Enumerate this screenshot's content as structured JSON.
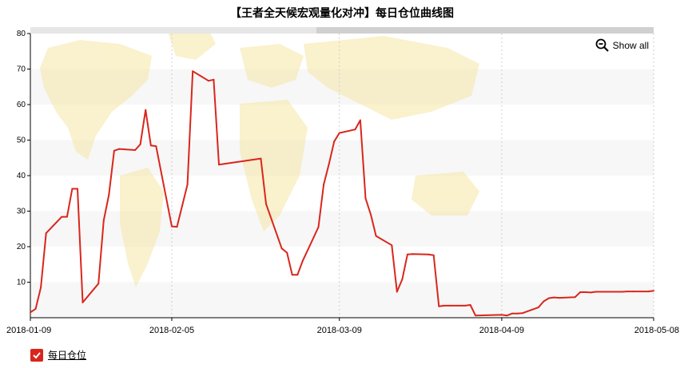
{
  "chart_data": {
    "type": "line",
    "title": "【王者全天候宏观量化对冲】每日仓位曲线图",
    "ylim": [
      0,
      80
    ],
    "yticks": [
      10,
      20,
      30,
      40,
      50,
      60,
      70,
      80
    ],
    "xlim": [
      "2018-01-09",
      "2018-05-08"
    ],
    "xticks": [
      "2018-01-09",
      "2018-02-05",
      "2018-03-09",
      "2018-04-09",
      "2018-05-08"
    ],
    "grid": "horizontal bands + vertical dotted lines",
    "legend_position": "bottom-left",
    "series": [
      {
        "name": "每日仓位",
        "color": "#d9261c",
        "points": [
          [
            "2018-01-09",
            1.5
          ],
          [
            "2018-01-10",
            2.5
          ],
          [
            "2018-01-11",
            8.5
          ],
          [
            "2018-01-12",
            23.8
          ],
          [
            "2018-01-15",
            28.4
          ],
          [
            "2018-01-16",
            28.4
          ],
          [
            "2018-01-17",
            36.3
          ],
          [
            "2018-01-18",
            36.3
          ],
          [
            "2018-01-19",
            4.3
          ],
          [
            "2018-01-22",
            9.6
          ],
          [
            "2018-01-23",
            27.4
          ],
          [
            "2018-01-24",
            34.6
          ],
          [
            "2018-01-25",
            47.0
          ],
          [
            "2018-01-26",
            47.5
          ],
          [
            "2018-01-29",
            47.2
          ],
          [
            "2018-01-30",
            48.8
          ],
          [
            "2018-01-31",
            58.5
          ],
          [
            "2018-02-01",
            48.5
          ],
          [
            "2018-02-02",
            48.3
          ],
          [
            "2018-02-05",
            25.7
          ],
          [
            "2018-02-06",
            25.6
          ],
          [
            "2018-02-07",
            31.6
          ],
          [
            "2018-02-08",
            37.5
          ],
          [
            "2018-02-09",
            69.4
          ],
          [
            "2018-02-12",
            66.7
          ],
          [
            "2018-02-13",
            67.0
          ],
          [
            "2018-02-14",
            43.1
          ],
          [
            "2018-02-22",
            44.8
          ],
          [
            "2018-02-23",
            32.0
          ],
          [
            "2018-02-26",
            19.5
          ],
          [
            "2018-02-27",
            18.3
          ],
          [
            "2018-02-28",
            12.1
          ],
          [
            "2018-03-01",
            12.1
          ],
          [
            "2018-03-02",
            16.0
          ],
          [
            "2018-03-05",
            25.5
          ],
          [
            "2018-03-06",
            37.5
          ],
          [
            "2018-03-07",
            43.2
          ],
          [
            "2018-03-08",
            49.6
          ],
          [
            "2018-03-09",
            52.0
          ],
          [
            "2018-03-12",
            53.0
          ],
          [
            "2018-03-13",
            55.6
          ],
          [
            "2018-03-14",
            33.6
          ],
          [
            "2018-03-15",
            29.0
          ],
          [
            "2018-03-16",
            23.0
          ],
          [
            "2018-03-19",
            20.4
          ],
          [
            "2018-03-20",
            7.3
          ],
          [
            "2018-03-21",
            10.8
          ],
          [
            "2018-03-22",
            17.8
          ],
          [
            "2018-03-23",
            17.9
          ],
          [
            "2018-03-26",
            17.8
          ],
          [
            "2018-03-27",
            17.6
          ],
          [
            "2018-03-28",
            3.2
          ],
          [
            "2018-03-29",
            3.4
          ],
          [
            "2018-03-30",
            3.4
          ],
          [
            "2018-04-02",
            3.4
          ],
          [
            "2018-04-03",
            3.6
          ],
          [
            "2018-04-04",
            0.6
          ],
          [
            "2018-04-09",
            0.8
          ],
          [
            "2018-04-10",
            0.6
          ],
          [
            "2018-04-11",
            1.2
          ],
          [
            "2018-04-12",
            1.2
          ],
          [
            "2018-04-13",
            1.3
          ],
          [
            "2018-04-16",
            2.9
          ],
          [
            "2018-04-17",
            4.6
          ],
          [
            "2018-04-18",
            5.5
          ],
          [
            "2018-04-19",
            5.7
          ],
          [
            "2018-04-20",
            5.6
          ],
          [
            "2018-04-23",
            5.8
          ],
          [
            "2018-04-24",
            7.2
          ],
          [
            "2018-04-25",
            7.2
          ],
          [
            "2018-04-26",
            7.1
          ],
          [
            "2018-04-27",
            7.3
          ],
          [
            "2018-05-02",
            7.3
          ],
          [
            "2018-05-03",
            7.4
          ],
          [
            "2018-05-04",
            7.4
          ],
          [
            "2018-05-07",
            7.4
          ],
          [
            "2018-05-08",
            7.6
          ]
        ]
      }
    ]
  },
  "ui": {
    "show_all_label": "Show all",
    "legend_label": "每日仓位"
  },
  "colors": {
    "line": "#d9261c",
    "band_light": "#f7f7f7",
    "scrollbar_track": "#e6e6e6",
    "scrollbar_thumb": "#d0d0d0",
    "map": "#f6e6a6"
  }
}
